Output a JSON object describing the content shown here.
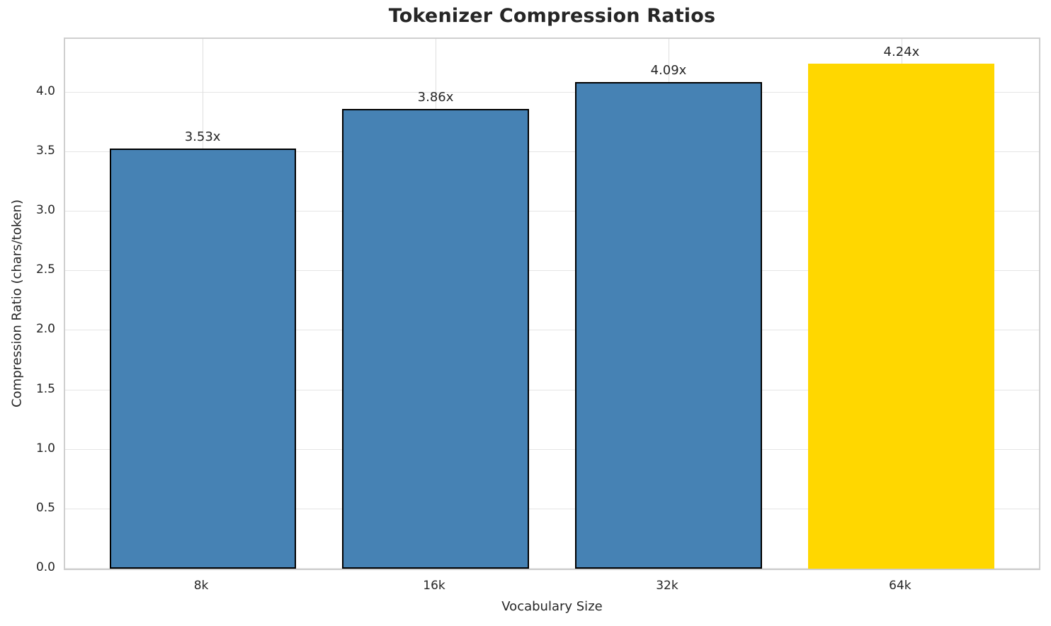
{
  "chart_data": {
    "type": "bar",
    "title": "Tokenizer Compression Ratios",
    "xlabel": "Vocabulary Size",
    "ylabel": "Compression Ratio (chars/token)",
    "categories": [
      "8k",
      "16k",
      "32k",
      "64k"
    ],
    "values": [
      3.53,
      3.86,
      4.09,
      4.24
    ],
    "bar_labels": [
      "3.53x",
      "3.86x",
      "4.09x",
      "4.24x"
    ],
    "bar_colors": [
      "#4682b4",
      "#4682b4",
      "#4682b4",
      "#ffd700"
    ],
    "bar_edge_colors": [
      "#000000",
      "#000000",
      "#000000",
      "none"
    ],
    "ylim": [
      0,
      4.45
    ],
    "yticks": [
      0.0,
      0.5,
      1.0,
      1.5,
      2.0,
      2.5,
      3.0,
      3.5,
      4.0
    ],
    "ytick_labels": [
      "0.0",
      "0.5",
      "1.0",
      "1.5",
      "2.0",
      "2.5",
      "3.0",
      "3.5",
      "4.0"
    ],
    "xlim": [
      -0.59,
      3.59
    ],
    "bar_width_units": 0.8,
    "grid": true,
    "legend": "none",
    "grid_color": "#e5e5e5",
    "axes_edge_color": "#cfcfcf",
    "text_color": "#262626",
    "background_color": "#ffffff"
  }
}
